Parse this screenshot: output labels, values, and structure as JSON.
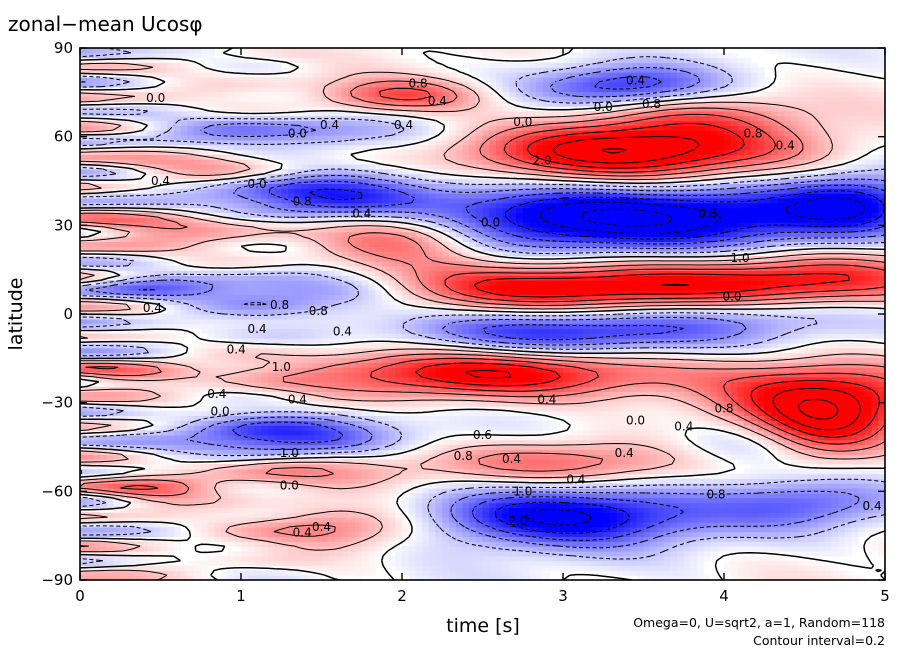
{
  "chart_data": {
    "type": "heatmap",
    "title": "zonal−mean Ucosφ",
    "xlabel": "time [s]",
    "ylabel": "latitude",
    "xlim": [
      0,
      5
    ],
    "ylim": [
      -90,
      90
    ],
    "x_ticks": [
      0,
      1,
      2,
      3,
      4,
      5
    ],
    "y_ticks": [
      -90,
      -60,
      -30,
      0,
      30,
      60,
      90
    ],
    "x_tick_labels": [
      "0",
      "1",
      "2",
      "3",
      "4",
      "5"
    ],
    "y_tick_labels": [
      "−90",
      "−60",
      "−30",
      "0",
      "30",
      "60",
      "90"
    ],
    "annotations": [
      "Omega=0, U=sqrt2, a=1, Random=118",
      "Contour interval=0.2"
    ],
    "contour_interval": 0.2,
    "positive_color": "#ff0000",
    "negative_color": "#0000ff",
    "contour_labels": [
      {
        "text": "0.4",
        "t": 3.45,
        "lat": 79
      },
      {
        "text": "0.8",
        "t": 2.1,
        "lat": 78
      },
      {
        "text": "0.0",
        "t": 0.47,
        "lat": 73
      },
      {
        "text": "0.4",
        "t": 2.22,
        "lat": 72
      },
      {
        "text": "0.0",
        "t": 3.25,
        "lat": 70
      },
      {
        "text": "0.8",
        "t": 3.55,
        "lat": 71
      },
      {
        "text": "0.4",
        "t": 1.55,
        "lat": 64
      },
      {
        "text": "0.4",
        "t": 2.01,
        "lat": 64
      },
      {
        "text": "0.0",
        "t": 2.75,
        "lat": 65
      },
      {
        "text": "0.0",
        "t": 1.35,
        "lat": 61
      },
      {
        "text": "0.8",
        "t": 4.18,
        "lat": 61
      },
      {
        "text": "0.4",
        "t": 4.38,
        "lat": 57
      },
      {
        "text": "2.0",
        "t": 2.87,
        "lat": 52
      },
      {
        "text": "0.4",
        "t": 0.5,
        "lat": 45
      },
      {
        "text": "0.0",
        "t": 1.1,
        "lat": 44
      },
      {
        "text": "0.8",
        "t": 1.38,
        "lat": 38
      },
      {
        "text": "0.4",
        "t": 1.75,
        "lat": 34
      },
      {
        "text": "0.8",
        "t": 3.9,
        "lat": 34
      },
      {
        "text": "0.0",
        "t": 2.55,
        "lat": 31
      },
      {
        "text": "1.0",
        "t": 4.1,
        "lat": 19
      },
      {
        "text": "0.0",
        "t": 4.05,
        "lat": 6
      },
      {
        "text": "0.8",
        "t": 1.24,
        "lat": 3
      },
      {
        "text": "0.8",
        "t": 1.48,
        "lat": 1
      },
      {
        "text": "0.4",
        "t": 0.45,
        "lat": 2
      },
      {
        "text": "0.4",
        "t": 1.1,
        "lat": -5
      },
      {
        "text": "0.4",
        "t": 1.63,
        "lat": -6
      },
      {
        "text": "0.4",
        "t": 0.97,
        "lat": -12
      },
      {
        "text": "1.0",
        "t": 1.25,
        "lat": -18
      },
      {
        "text": "0.4",
        "t": 0.85,
        "lat": -27
      },
      {
        "text": "0.0",
        "t": 0.87,
        "lat": -33
      },
      {
        "text": "0.4",
        "t": 1.35,
        "lat": -29
      },
      {
        "text": "0.8",
        "t": 4.0,
        "lat": -32
      },
      {
        "text": "0.4",
        "t": 2.9,
        "lat": -29
      },
      {
        "text": "0.0",
        "t": 3.45,
        "lat": -36
      },
      {
        "text": "0.4",
        "t": 3.75,
        "lat": -38
      },
      {
        "text": "0.6",
        "t": 2.5,
        "lat": -41
      },
      {
        "text": "0.8",
        "t": 2.38,
        "lat": -48
      },
      {
        "text": "0.4",
        "t": 2.68,
        "lat": -49
      },
      {
        "text": "1.0",
        "t": 1.3,
        "lat": -47
      },
      {
        "text": "0.4",
        "t": 3.38,
        "lat": -47
      },
      {
        "text": "0.0",
        "t": 1.3,
        "lat": -58
      },
      {
        "text": "1.0",
        "t": 2.75,
        "lat": -60
      },
      {
        "text": "0.4",
        "t": 3.08,
        "lat": -56
      },
      {
        "text": "0.8",
        "t": 3.95,
        "lat": -61
      },
      {
        "text": "2.0",
        "t": 2.72,
        "lat": -70
      },
      {
        "text": "0.4",
        "t": 1.5,
        "lat": -72
      },
      {
        "text": "0.4",
        "t": 1.38,
        "lat": -74
      },
      {
        "text": "0.4",
        "t": 4.92,
        "lat": -65
      }
    ]
  }
}
